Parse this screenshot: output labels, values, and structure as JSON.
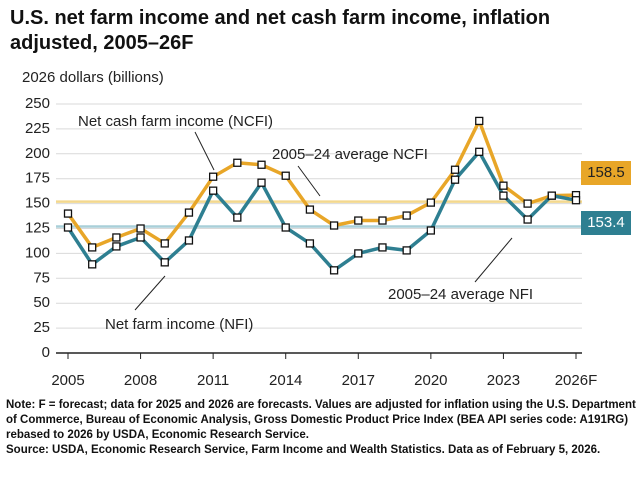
{
  "chart_data": {
    "type": "line",
    "title": "U.S. net farm income and net cash farm income, inflation adjusted, 2005–26F",
    "y_label": "2026 dollars (billions)",
    "x": [
      2005,
      2006,
      2007,
      2008,
      2009,
      2010,
      2011,
      2012,
      2013,
      2014,
      2015,
      2016,
      2017,
      2018,
      2019,
      2020,
      2021,
      2022,
      2023,
      2024,
      2025,
      2026
    ],
    "xlim": [
      2005,
      2026
    ],
    "xticks": [
      2005,
      2008,
      2011,
      2014,
      2017,
      2020,
      2023,
      {
        "value": 2026,
        "label": "2026F"
      }
    ],
    "ylim": [
      0,
      250
    ],
    "yticks": [
      0,
      25,
      50,
      75,
      100,
      125,
      150,
      175,
      200,
      225,
      250
    ],
    "grid": true,
    "series": [
      {
        "name": "Net cash farm income (NCFI)",
        "color": "#e8a628",
        "values": [
          140,
          106,
          116,
          125,
          110,
          141,
          177,
          191,
          189,
          178,
          144,
          128,
          133,
          133,
          138,
          151,
          184,
          233,
          168,
          150,
          158,
          158.5
        ]
      },
      {
        "name": "Net farm income (NFI)",
        "color": "#2e7f91",
        "values": [
          126,
          89,
          107,
          116,
          91,
          113,
          163,
          136,
          171,
          126,
          110,
          83,
          100,
          106,
          103,
          123,
          174,
          202,
          158,
          134,
          158,
          153.4
        ]
      }
    ],
    "reference_lines": [
      {
        "name": "2005–24 average NCFI",
        "value": 152,
        "color": "#f3d88e"
      },
      {
        "name": "2005–24 average NFI",
        "value": 127,
        "color": "#a9cfd8"
      }
    ],
    "note": "Note: F = forecast; data for 2025 and 2026 are forecasts. Values are adjusted for inflation using the U.S. Department of Commerce, Bureau of Economic Analysis, Gross Domestic Product Price Index (BEA API series code: A191RG) rebased to 2026 by USDA, Economic Research Service.",
    "source": "Source: USDA, Economic Research Service, Farm Income and Wealth Statistics. Data as of February 5, 2026."
  }
}
